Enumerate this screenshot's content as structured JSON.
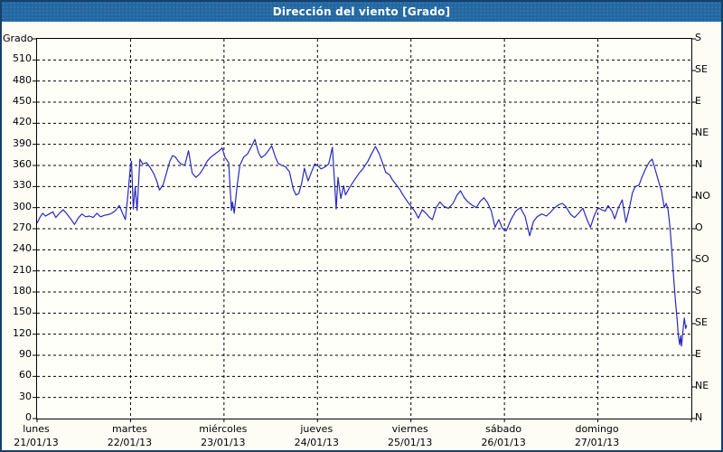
{
  "window": {
    "title": "Dirección del viento [Grado]"
  },
  "colors": {
    "titlebar_bg": "#2268a2",
    "frame_border": "#17406b",
    "line": "#2929bb",
    "grid": "#000000",
    "background": "#fdfdf6"
  },
  "y_axis": {
    "unit_label": "Grado",
    "labeled_ticks": [
      510,
      480,
      450,
      420,
      390,
      360,
      330,
      300,
      270,
      240,
      210,
      180,
      150,
      120,
      90,
      60,
      30,
      0
    ]
  },
  "right_axis": {
    "ticks": [
      {
        "value": 540,
        "label": "S"
      },
      {
        "value": 495,
        "label": "SE"
      },
      {
        "value": 450,
        "label": "E"
      },
      {
        "value": 405,
        "label": "NE"
      },
      {
        "value": 360,
        "label": "N"
      },
      {
        "value": 315,
        "label": "NO"
      },
      {
        "value": 270,
        "label": "O"
      },
      {
        "value": 225,
        "label": "SO"
      },
      {
        "value": 180,
        "label": "S"
      },
      {
        "value": 135,
        "label": "SE"
      },
      {
        "value": 90,
        "label": "E"
      },
      {
        "value": 45,
        "label": "NE"
      },
      {
        "value": 0,
        "label": "N"
      }
    ]
  },
  "x_axis": {
    "days": [
      {
        "name": "lunes",
        "date": "21/01/13"
      },
      {
        "name": "martes",
        "date": "22/01/13"
      },
      {
        "name": "miércoles",
        "date": "23/01/13"
      },
      {
        "name": "jueves",
        "date": "24/01/13"
      },
      {
        "name": "viernes",
        "date": "25/01/13"
      },
      {
        "name": "sábado",
        "date": "26/01/13"
      },
      {
        "name": "domingo",
        "date": "27/01/13"
      }
    ]
  },
  "chart_data": {
    "type": "line",
    "title": "Dirección del viento [Grado]",
    "ylabel": "Grado (wind direction, degrees)",
    "ylim": [
      0,
      540
    ],
    "y_tick_step": 30,
    "right_axis_compass_step": 45,
    "grid": "dashed",
    "legend": "none",
    "x_unit": "days since lunes 21/01/13 00:00",
    "x_categories": [
      "lunes 21/01/13",
      "martes 22/01/13",
      "miércoles 23/01/13",
      "jueves 24/01/13",
      "viernes 25/01/13",
      "sábado 26/01/13",
      "domingo 27/01/13"
    ],
    "series": [
      {
        "name": "Dirección del viento",
        "color": "#2929bb",
        "points": [
          [
            0.0,
            278
          ],
          [
            0.03,
            286
          ],
          [
            0.06,
            292
          ],
          [
            0.09,
            288
          ],
          [
            0.13,
            291
          ],
          [
            0.17,
            294
          ],
          [
            0.2,
            286
          ],
          [
            0.24,
            292
          ],
          [
            0.28,
            297
          ],
          [
            0.32,
            291
          ],
          [
            0.36,
            284
          ],
          [
            0.4,
            276
          ],
          [
            0.44,
            285
          ],
          [
            0.48,
            291
          ],
          [
            0.52,
            287
          ],
          [
            0.56,
            288
          ],
          [
            0.6,
            286
          ],
          [
            0.64,
            292
          ],
          [
            0.68,
            287
          ],
          [
            0.72,
            289
          ],
          [
            0.76,
            290
          ],
          [
            0.8,
            292
          ],
          [
            0.84,
            296
          ],
          [
            0.88,
            303
          ],
          [
            0.92,
            290
          ],
          [
            0.945,
            283
          ],
          [
            0.97,
            315
          ],
          [
            1.0,
            360
          ],
          [
            1.01,
            366
          ],
          [
            1.03,
            298
          ],
          [
            1.05,
            330
          ],
          [
            1.07,
            296
          ],
          [
            1.1,
            369
          ],
          [
            1.13,
            362
          ],
          [
            1.17,
            364
          ],
          [
            1.21,
            357
          ],
          [
            1.25,
            348
          ],
          [
            1.28,
            338
          ],
          [
            1.31,
            325
          ],
          [
            1.35,
            333
          ],
          [
            1.39,
            352
          ],
          [
            1.42,
            366
          ],
          [
            1.45,
            374
          ],
          [
            1.48,
            372
          ],
          [
            1.51,
            366
          ],
          [
            1.54,
            362
          ],
          [
            1.58,
            360
          ],
          [
            1.62,
            381
          ],
          [
            1.66,
            349
          ],
          [
            1.7,
            343
          ],
          [
            1.74,
            348
          ],
          [
            1.78,
            356
          ],
          [
            1.82,
            366
          ],
          [
            1.86,
            372
          ],
          [
            1.9,
            376
          ],
          [
            1.95,
            381
          ],
          [
            1.98,
            385
          ],
          [
            2.01,
            372
          ],
          [
            2.05,
            364
          ],
          [
            2.08,
            296
          ],
          [
            2.09,
            308
          ],
          [
            2.11,
            292
          ],
          [
            2.14,
            330
          ],
          [
            2.17,
            360
          ],
          [
            2.21,
            372
          ],
          [
            2.25,
            376
          ],
          [
            2.29,
            386
          ],
          [
            2.33,
            397
          ],
          [
            2.37,
            378
          ],
          [
            2.4,
            371
          ],
          [
            2.44,
            375
          ],
          [
            2.48,
            382
          ],
          [
            2.51,
            388
          ],
          [
            2.55,
            372
          ],
          [
            2.58,
            363
          ],
          [
            2.62,
            360
          ],
          [
            2.66,
            358
          ],
          [
            2.7,
            351
          ],
          [
            2.74,
            327
          ],
          [
            2.77,
            318
          ],
          [
            2.8,
            320
          ],
          [
            2.83,
            334
          ],
          [
            2.86,
            356
          ],
          [
            2.9,
            338
          ],
          [
            2.94,
            352
          ],
          [
            2.97,
            362
          ],
          [
            3.0,
            360
          ],
          [
            3.04,
            355
          ],
          [
            3.08,
            358
          ],
          [
            3.12,
            362
          ],
          [
            3.16,
            386
          ],
          [
            3.2,
            298
          ],
          [
            3.22,
            343
          ],
          [
            3.25,
            313
          ],
          [
            3.28,
            331
          ],
          [
            3.3,
            318
          ],
          [
            3.34,
            328
          ],
          [
            3.39,
            338
          ],
          [
            3.44,
            348
          ],
          [
            3.49,
            356
          ],
          [
            3.54,
            366
          ],
          [
            3.58,
            377
          ],
          [
            3.62,
            387
          ],
          [
            3.66,
            377
          ],
          [
            3.7,
            362
          ],
          [
            3.73,
            350
          ],
          [
            3.77,
            347
          ],
          [
            3.8,
            340
          ],
          [
            3.84,
            333
          ],
          [
            3.88,
            326
          ],
          [
            3.92,
            317
          ],
          [
            3.96,
            309
          ],
          [
            4.0,
            302
          ],
          [
            4.04,
            295
          ],
          [
            4.08,
            285
          ],
          [
            4.12,
            297
          ],
          [
            4.16,
            292
          ],
          [
            4.2,
            286
          ],
          [
            4.23,
            283
          ],
          [
            4.27,
            300
          ],
          [
            4.31,
            308
          ],
          [
            4.35,
            302
          ],
          [
            4.4,
            299
          ],
          [
            4.45,
            306
          ],
          [
            4.49,
            317
          ],
          [
            4.53,
            324
          ],
          [
            4.57,
            314
          ],
          [
            4.61,
            308
          ],
          [
            4.65,
            304
          ],
          [
            4.7,
            300
          ],
          [
            4.74,
            309
          ],
          [
            4.78,
            314
          ],
          [
            4.82,
            307
          ],
          [
            4.86,
            295
          ],
          [
            4.9,
            272
          ],
          [
            4.94,
            283
          ],
          [
            4.98,
            270
          ],
          [
            5.02,
            267
          ],
          [
            5.07,
            283
          ],
          [
            5.12,
            295
          ],
          [
            5.17,
            300
          ],
          [
            5.22,
            288
          ],
          [
            5.27,
            260
          ],
          [
            5.31,
            280
          ],
          [
            5.35,
            287
          ],
          [
            5.4,
            291
          ],
          [
            5.45,
            288
          ],
          [
            5.49,
            293
          ],
          [
            5.53,
            299
          ],
          [
            5.58,
            304
          ],
          [
            5.62,
            306
          ],
          [
            5.66,
            301
          ],
          [
            5.71,
            290
          ],
          [
            5.75,
            286
          ],
          [
            5.8,
            293
          ],
          [
            5.84,
            299
          ],
          [
            5.88,
            284
          ],
          [
            5.92,
            272
          ],
          [
            5.96,
            288
          ],
          [
            6.0,
            300
          ],
          [
            6.04,
            297
          ],
          [
            6.08,
            295
          ],
          [
            6.11,
            303
          ],
          [
            6.15,
            295
          ],
          [
            6.18,
            284
          ],
          [
            6.22,
            300
          ],
          [
            6.26,
            311
          ],
          [
            6.3,
            279
          ],
          [
            6.33,
            295
          ],
          [
            6.37,
            321
          ],
          [
            6.4,
            330
          ],
          [
            6.44,
            332
          ],
          [
            6.47,
            343
          ],
          [
            6.51,
            355
          ],
          [
            6.55,
            365
          ],
          [
            6.58,
            369
          ],
          [
            6.62,
            351
          ],
          [
            6.65,
            337
          ],
          [
            6.68,
            324
          ],
          [
            6.71,
            300
          ],
          [
            6.73,
            306
          ],
          [
            6.75,
            298
          ],
          [
            6.77,
            274
          ],
          [
            6.79,
            240
          ],
          [
            6.81,
            202
          ],
          [
            6.83,
            167
          ],
          [
            6.85,
            137
          ],
          [
            6.86,
            118
          ],
          [
            6.875,
            105
          ],
          [
            6.885,
            118
          ],
          [
            6.895,
            103
          ],
          [
            6.91,
            125
          ],
          [
            6.925,
            143
          ],
          [
            6.94,
            128
          ],
          [
            6.95,
            133
          ]
        ]
      }
    ]
  }
}
